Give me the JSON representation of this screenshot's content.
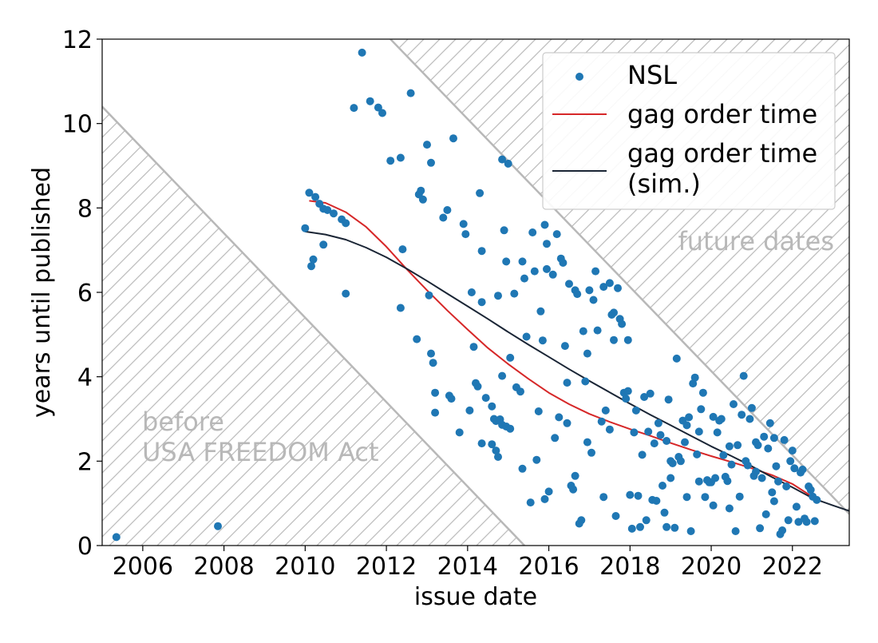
{
  "chart_data": {
    "type": "scatter",
    "title": "",
    "xlabel": "issue date",
    "ylabel": "years until published",
    "xlim": [
      2005.0,
      2023.4
    ],
    "ylim": [
      0,
      12
    ],
    "x_ticks": [
      2006,
      2008,
      2010,
      2012,
      2014,
      2016,
      2018,
      2020,
      2022
    ],
    "y_ticks": [
      0,
      2,
      4,
      6,
      8,
      10,
      12
    ],
    "x_tick_labels": [
      "2006",
      "2008",
      "2010",
      "2012",
      "2014",
      "2016",
      "2018",
      "2020",
      "2022"
    ],
    "y_tick_labels": [
      "0",
      "2",
      "4",
      "6",
      "8",
      "10",
      "12"
    ],
    "grid": false,
    "legend_position": "top-right",
    "shaded_regions": [
      {
        "label_lines": [
          "before",
          "USA FREEDOM Act"
        ],
        "boundary": [
          [
            2005.0,
            10.4
          ],
          [
            2015.4,
            0
          ]
        ],
        "hatch": "diagonal",
        "color": "#b8b8b8"
      },
      {
        "label_lines": [
          "future dates"
        ],
        "boundary": [
          [
            2012.1,
            12.0
          ],
          [
            2023.4,
            0.75
          ]
        ],
        "hatch": "diagonal",
        "color": "#b8b8b8"
      }
    ],
    "series": [
      {
        "name": "NSL",
        "kind": "scatter",
        "color": "#1f77b4",
        "points": [
          [
            2005.35,
            0.2
          ],
          [
            2007.85,
            0.46
          ],
          [
            2010.0,
            7.52
          ],
          [
            2010.1,
            8.36
          ],
          [
            2010.15,
            6.62
          ],
          [
            2010.2,
            6.78
          ],
          [
            2010.25,
            8.26
          ],
          [
            2010.35,
            8.1
          ],
          [
            2010.45,
            7.98
          ],
          [
            2010.45,
            7.13
          ],
          [
            2010.55,
            7.95
          ],
          [
            2010.7,
            7.87
          ],
          [
            2010.9,
            7.73
          ],
          [
            2011.0,
            7.64
          ],
          [
            2011.0,
            5.97
          ],
          [
            2011.2,
            10.37
          ],
          [
            2011.4,
            11.68
          ],
          [
            2011.6,
            10.53
          ],
          [
            2011.8,
            10.38
          ],
          [
            2011.9,
            10.25
          ],
          [
            2012.1,
            9.12
          ],
          [
            2012.35,
            9.19
          ],
          [
            2012.4,
            7.02
          ],
          [
            2012.35,
            5.63
          ],
          [
            2012.6,
            10.72
          ],
          [
            2012.75,
            4.89
          ],
          [
            2012.8,
            8.32
          ],
          [
            2012.85,
            8.41
          ],
          [
            2012.9,
            8.2
          ],
          [
            2013.0,
            9.5
          ],
          [
            2013.1,
            9.07
          ],
          [
            2013.05,
            5.93
          ],
          [
            2013.1,
            4.55
          ],
          [
            2013.15,
            4.33
          ],
          [
            2013.2,
            3.62
          ],
          [
            2013.2,
            3.15
          ],
          [
            2013.4,
            7.77
          ],
          [
            2013.5,
            7.95
          ],
          [
            2013.55,
            3.55
          ],
          [
            2013.6,
            3.48
          ],
          [
            2013.65,
            9.65
          ],
          [
            2013.8,
            2.68
          ],
          [
            2013.9,
            7.62
          ],
          [
            2013.95,
            7.38
          ],
          [
            2014.05,
            3.2
          ],
          [
            2014.1,
            6.0
          ],
          [
            2014.15,
            4.71
          ],
          [
            2014.2,
            3.85
          ],
          [
            2014.25,
            3.77
          ],
          [
            2014.3,
            8.35
          ],
          [
            2014.35,
            6.98
          ],
          [
            2014.35,
            5.77
          ],
          [
            2014.45,
            3.5
          ],
          [
            2014.6,
            3.3
          ],
          [
            2014.65,
            3.0
          ],
          [
            2014.7,
            2.95
          ],
          [
            2014.75,
            5.92
          ],
          [
            2014.8,
            2.99
          ],
          [
            2014.85,
            2.86
          ],
          [
            2014.6,
            2.4
          ],
          [
            2014.7,
            2.25
          ],
          [
            2014.75,
            2.1
          ],
          [
            2014.85,
            9.15
          ],
          [
            2014.85,
            4.02
          ],
          [
            2014.9,
            7.47
          ],
          [
            2014.95,
            6.73
          ],
          [
            2014.95,
            2.82
          ],
          [
            2015.0,
            9.05
          ],
          [
            2015.05,
            2.77
          ],
          [
            2015.15,
            5.97
          ],
          [
            2015.2,
            3.75
          ],
          [
            2015.3,
            3.65
          ],
          [
            2015.35,
            6.73
          ],
          [
            2015.35,
            1.82
          ],
          [
            2015.4,
            6.33
          ],
          [
            2015.45,
            4.95
          ],
          [
            2015.55,
            1.02
          ],
          [
            2015.6,
            7.42
          ],
          [
            2015.65,
            6.5
          ],
          [
            2015.7,
            2.03
          ],
          [
            2015.8,
            5.55
          ],
          [
            2015.85,
            4.86
          ],
          [
            2015.9,
            7.6
          ],
          [
            2015.95,
            6.55
          ],
          [
            2015.95,
            7.15
          ],
          [
            2015.9,
            1.1
          ],
          [
            2016.0,
            1.28
          ],
          [
            2016.1,
            6.42
          ],
          [
            2016.15,
            2.55
          ],
          [
            2016.2,
            7.38
          ],
          [
            2016.25,
            3.04
          ],
          [
            2016.3,
            6.8
          ],
          [
            2016.35,
            6.7
          ],
          [
            2016.4,
            4.73
          ],
          [
            2016.45,
            3.86
          ],
          [
            2016.5,
            6.2
          ],
          [
            2016.55,
            1.42
          ],
          [
            2016.6,
            1.33
          ],
          [
            2016.65,
            1.65
          ],
          [
            2016.65,
            6.05
          ],
          [
            2016.7,
            5.96
          ],
          [
            2016.75,
            0.52
          ],
          [
            2016.8,
            0.6
          ],
          [
            2016.85,
            5.08
          ],
          [
            2016.9,
            3.89
          ],
          [
            2016.95,
            4.55
          ],
          [
            2017.0,
            6.05
          ],
          [
            2017.05,
            2.2
          ],
          [
            2017.1,
            5.82
          ],
          [
            2017.15,
            6.5
          ],
          [
            2017.2,
            5.1
          ],
          [
            2017.3,
            2.94
          ],
          [
            2017.35,
            6.13
          ],
          [
            2017.4,
            3.2
          ],
          [
            2017.5,
            6.22
          ],
          [
            2017.55,
            5.47
          ],
          [
            2017.6,
            5.52
          ],
          [
            2017.6,
            4.87
          ],
          [
            2017.65,
            0.7
          ],
          [
            2017.7,
            6.1
          ],
          [
            2017.75,
            5.37
          ],
          [
            2017.8,
            5.25
          ],
          [
            2017.85,
            3.62
          ],
          [
            2017.9,
            3.48
          ],
          [
            2017.95,
            3.66
          ],
          [
            2017.95,
            4.87
          ],
          [
            2018.0,
            1.2
          ],
          [
            2018.05,
            0.4
          ],
          [
            2018.1,
            2.68
          ],
          [
            2018.15,
            3.2
          ],
          [
            2018.2,
            1.18
          ],
          [
            2018.25,
            0.44
          ],
          [
            2018.3,
            2.15
          ],
          [
            2018.35,
            3.52
          ],
          [
            2018.4,
            0.6
          ],
          [
            2018.45,
            2.7
          ],
          [
            2018.55,
            1.08
          ],
          [
            2018.65,
            1.06
          ],
          [
            2018.7,
            2.9
          ],
          [
            2018.75,
            2.62
          ],
          [
            2018.8,
            1.42
          ],
          [
            2018.85,
            0.78
          ],
          [
            2018.9,
            0.44
          ],
          [
            2018.95,
            3.46
          ],
          [
            2019.0,
            2.0
          ],
          [
            2019.05,
            1.95
          ],
          [
            2019.1,
            0.42
          ],
          [
            2019.15,
            4.43
          ],
          [
            2019.2,
            2.1
          ],
          [
            2019.25,
            2.0
          ],
          [
            2019.3,
            2.96
          ],
          [
            2019.35,
            2.45
          ],
          [
            2019.4,
            1.15
          ],
          [
            2019.45,
            3.04
          ],
          [
            2019.5,
            0.34
          ],
          [
            2019.55,
            3.84
          ],
          [
            2019.6,
            3.98
          ],
          [
            2019.65,
            2.16
          ],
          [
            2019.7,
            1.52
          ],
          [
            2019.75,
            3.23
          ],
          [
            2019.8,
            3.62
          ],
          [
            2019.85,
            1.15
          ],
          [
            2019.9,
            1.55
          ],
          [
            2019.95,
            1.5
          ],
          [
            2020.0,
            1.5
          ],
          [
            2020.05,
            3.05
          ],
          [
            2020.1,
            1.6
          ],
          [
            2020.15,
            2.68
          ],
          [
            2020.2,
            2.96
          ],
          [
            2020.25,
            3.0
          ],
          [
            2020.3,
            2.14
          ],
          [
            2020.35,
            1.63
          ],
          [
            2020.4,
            1.53
          ],
          [
            2020.45,
            0.88
          ],
          [
            2020.5,
            1.92
          ],
          [
            2020.55,
            3.35
          ],
          [
            2020.6,
            0.34
          ],
          [
            2020.65,
            2.38
          ],
          [
            2020.7,
            1.16
          ],
          [
            2020.75,
            3.1
          ],
          [
            2020.8,
            4.02
          ],
          [
            2020.85,
            2.0
          ],
          [
            2020.9,
            1.9
          ],
          [
            2020.95,
            3.0
          ],
          [
            2021.0,
            3.26
          ],
          [
            2021.05,
            1.65
          ],
          [
            2021.1,
            2.45
          ],
          [
            2021.15,
            2.38
          ],
          [
            2021.2,
            0.41
          ],
          [
            2021.25,
            1.6
          ],
          [
            2021.3,
            2.58
          ],
          [
            2021.35,
            0.74
          ],
          [
            2021.4,
            2.3
          ],
          [
            2021.45,
            2.9
          ],
          [
            2021.5,
            1.26
          ],
          [
            2021.55,
            2.55
          ],
          [
            2021.6,
            1.88
          ],
          [
            2021.65,
            1.52
          ],
          [
            2021.7,
            0.27
          ],
          [
            2021.75,
            0.36
          ],
          [
            2021.8,
            2.5
          ],
          [
            2021.85,
            1.4
          ],
          [
            2021.9,
            0.6
          ],
          [
            2021.95,
            2.0
          ],
          [
            2022.0,
            2.25
          ],
          [
            2022.05,
            1.83
          ],
          [
            2022.1,
            0.92
          ],
          [
            2022.15,
            0.56
          ],
          [
            2022.2,
            1.73
          ],
          [
            2022.25,
            1.8
          ],
          [
            2022.3,
            0.64
          ],
          [
            2022.35,
            0.56
          ],
          [
            2022.4,
            1.4
          ],
          [
            2022.45,
            1.32
          ],
          [
            2022.5,
            1.16
          ],
          [
            2022.55,
            0.58
          ],
          [
            2022.6,
            1.08
          ],
          [
            2015.05,
            4.45
          ],
          [
            2016.45,
            2.9
          ],
          [
            2017.35,
            1.15
          ],
          [
            2018.6,
            2.42
          ],
          [
            2019.0,
            1.6
          ],
          [
            2020.05,
            0.95
          ],
          [
            2021.1,
            1.75
          ],
          [
            2014.35,
            2.42
          ],
          [
            2015.75,
            3.18
          ],
          [
            2016.95,
            2.45
          ],
          [
            2018.5,
            3.6
          ],
          [
            2019.7,
            2.7
          ],
          [
            2017.5,
            2.75
          ],
          [
            2018.9,
            2.48
          ],
          [
            2020.45,
            2.35
          ],
          [
            2021.55,
            1.05
          ],
          [
            2019.4,
            2.85
          ]
        ]
      },
      {
        "name": "gag order time",
        "kind": "line",
        "color": "#d62728",
        "points": [
          [
            2010.1,
            8.17
          ],
          [
            2010.5,
            8.12
          ],
          [
            2011.0,
            7.9
          ],
          [
            2011.5,
            7.55
          ],
          [
            2012.0,
            7.08
          ],
          [
            2012.5,
            6.55
          ],
          [
            2013.0,
            6.05
          ],
          [
            2013.5,
            5.57
          ],
          [
            2014.0,
            5.12
          ],
          [
            2014.5,
            4.68
          ],
          [
            2015.0,
            4.3
          ],
          [
            2015.5,
            3.95
          ],
          [
            2016.0,
            3.62
          ],
          [
            2016.5,
            3.35
          ],
          [
            2017.0,
            3.12
          ],
          [
            2017.5,
            2.93
          ],
          [
            2018.0,
            2.76
          ],
          [
            2018.5,
            2.6
          ],
          [
            2019.0,
            2.43
          ],
          [
            2019.5,
            2.27
          ],
          [
            2020.0,
            2.12
          ],
          [
            2020.5,
            1.98
          ],
          [
            2021.0,
            1.83
          ],
          [
            2021.5,
            1.67
          ],
          [
            2022.0,
            1.46
          ],
          [
            2022.5,
            1.15
          ]
        ]
      },
      {
        "name": "gag order time\n(sim.)",
        "kind": "line",
        "color": "#1a2535",
        "points": [
          [
            2010.0,
            7.44
          ],
          [
            2010.5,
            7.37
          ],
          [
            2011.0,
            7.25
          ],
          [
            2011.5,
            7.06
          ],
          [
            2012.0,
            6.83
          ],
          [
            2012.5,
            6.56
          ],
          [
            2013.0,
            6.27
          ],
          [
            2013.5,
            5.97
          ],
          [
            2014.0,
            5.67
          ],
          [
            2014.5,
            5.37
          ],
          [
            2015.0,
            5.06
          ],
          [
            2015.5,
            4.76
          ],
          [
            2016.0,
            4.47
          ],
          [
            2016.5,
            4.18
          ],
          [
            2017.0,
            3.9
          ],
          [
            2017.5,
            3.63
          ],
          [
            2018.0,
            3.36
          ],
          [
            2018.5,
            3.1
          ],
          [
            2019.0,
            2.85
          ],
          [
            2019.5,
            2.6
          ],
          [
            2020.0,
            2.35
          ],
          [
            2020.5,
            2.12
          ],
          [
            2021.0,
            1.88
          ],
          [
            2021.5,
            1.62
          ],
          [
            2022.0,
            1.38
          ],
          [
            2022.5,
            1.12
          ],
          [
            2023.0,
            0.95
          ],
          [
            2023.4,
            0.82
          ]
        ]
      }
    ]
  }
}
